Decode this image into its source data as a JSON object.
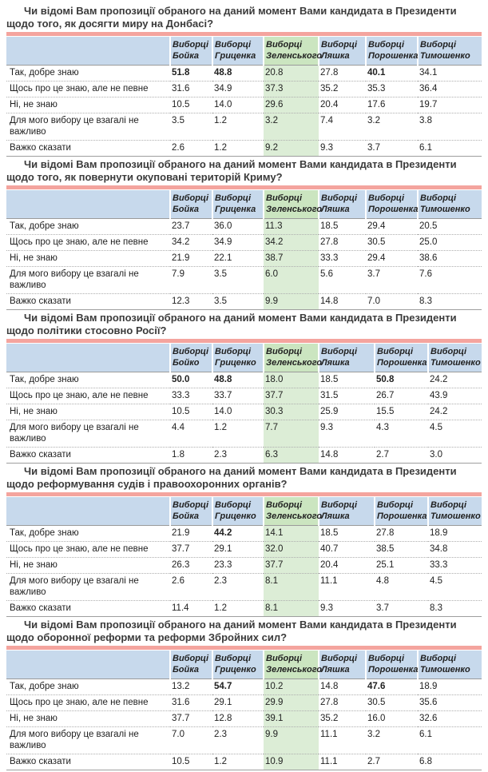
{
  "colors": {
    "title_underline_pink": "#f4a49e",
    "header_blue": "#c7d9ec",
    "highlight_green_header": "#cbe5c0",
    "highlight_green_cell": "#dcedd6"
  },
  "sections": [
    {
      "title": "Чи відомі Вам пропозиції обраного на даний момент Вами кандидата в Президенти щодо того, як досягти миру на Донбасі?",
      "columns": [
        "Виборці Бойка",
        "Виборці Гриценка",
        "Виборці Зеленського",
        "Виборці Ляшка",
        "Виборці Порошенка",
        "Виборці Тимошенко"
      ],
      "highlight_column": "Виборці Зеленського",
      "rows": [
        {
          "label": "Так, добре знаю",
          "values": [
            "51.8",
            "48.8",
            "20.8",
            "27.8",
            "40.1",
            "34.1"
          ],
          "bold": [
            0,
            1,
            4
          ]
        },
        {
          "label": "Щось про це знаю, але не певне",
          "values": [
            "31.6",
            "34.9",
            "37.3",
            "35.2",
            "35.3",
            "36.4"
          ]
        },
        {
          "label": "Ні, не знаю",
          "values": [
            "10.5",
            "14.0",
            "29.6",
            "20.4",
            "17.6",
            "19.7"
          ]
        },
        {
          "label": "Для мого вибору це взагалі не важливо",
          "values": [
            "3.5",
            "1.2",
            "3.2",
            "7.4",
            "3.2",
            "3.8"
          ]
        },
        {
          "label": "Важко сказати",
          "values": [
            "2.6",
            "1.2",
            "9.2",
            "9.3",
            "3.7",
            "6.1"
          ]
        }
      ]
    },
    {
      "title": "Чи відомі Вам пропозиції обраного на даний момент Вами кандидата в Президенти щодо того, як повернути окуповані територій Криму?",
      "columns": [
        "Виборці Бойка",
        "Виборці Гриценка",
        "Виборці Зеленського",
        "Виборці Ляшка",
        "Виборці Порошенка",
        "Виборці Тимошенко"
      ],
      "highlight_column": "Виборці Зеленського",
      "rows": [
        {
          "label": "Так, добре знаю",
          "values": [
            "23.7",
            "36.0",
            "11.3",
            "18.5",
            "29.4",
            "20.5"
          ]
        },
        {
          "label": "Щось про це знаю, але не певне",
          "values": [
            "34.2",
            "34.9",
            "34.2",
            "27.8",
            "30.5",
            "25.0"
          ]
        },
        {
          "label": "Ні, не знаю",
          "values": [
            "21.9",
            "22.1",
            "38.7",
            "33.3",
            "29.4",
            "38.6"
          ]
        },
        {
          "label": "Для мого вибору це взагалі не важливо",
          "values": [
            "7.9",
            "3.5",
            "6.0",
            "5.6",
            "3.7",
            "7.6"
          ]
        },
        {
          "label": "Важко сказати",
          "values": [
            "12.3",
            "3.5",
            "9.9",
            "14.8",
            "7.0",
            "8.3"
          ]
        }
      ]
    },
    {
      "title": "Чи відомі Вам пропозиції обраного на даний момент Вами кандидата в Президенти щодо політики стосовно Росії?",
      "columns": [
        "Виборці Бойко",
        "Виборці Гриценко",
        "Виборці Зеленського",
        "Виборці Ляшка",
        "Виборці Порошенка",
        "Виборці Тимошенко"
      ],
      "highlight_column": "Виборці Зеленського",
      "rows": [
        {
          "label": "Так, добре знаю",
          "values": [
            "50.0",
            "48.8",
            "18.0",
            "18.5",
            "50.8",
            "24.2"
          ],
          "bold": [
            0,
            1,
            4
          ]
        },
        {
          "label": "Щось про це знаю, але не певне",
          "values": [
            "33.3",
            "33.7",
            "37.7",
            "31.5",
            "26.7",
            "43.9"
          ]
        },
        {
          "label": "Ні, не знаю",
          "values": [
            "10.5",
            "14.0",
            "30.3",
            "25.9",
            "15.5",
            "24.2"
          ]
        },
        {
          "label": "Для мого вибору це взагалі не важливо",
          "values": [
            "4.4",
            "1.2",
            "7.7",
            "9.3",
            "4.3",
            "4.5"
          ]
        },
        {
          "label": "Важко сказати",
          "values": [
            "1.8",
            "2.3",
            "6.3",
            "14.8",
            "2.7",
            "3.0"
          ]
        }
      ]
    },
    {
      "title": "Чи відомі Вам пропозиції обраного на даний момент Вами кандидата в Президенти щодо реформування судів і правоохоронних органів?",
      "columns": [
        "Виборці Бойка",
        "Виборці Гриценко",
        "Виборці Зеленського",
        "Виборці Ляшка",
        "Виборці Порошенка",
        "Виборці Тимошенко"
      ],
      "highlight_column": "Виборці Зеленського",
      "rows": [
        {
          "label": "Так, добре знаю",
          "values": [
            "21.9",
            "44.2",
            "14.1",
            "18.5",
            "27.8",
            "18.9"
          ],
          "bold": [
            1
          ]
        },
        {
          "label": "Щось про це знаю, але не певне",
          "values": [
            "37.7",
            "29.1",
            "32.0",
            "40.7",
            "38.5",
            "34.8"
          ]
        },
        {
          "label": "Ні, не знаю",
          "values": [
            "26.3",
            "23.3",
            "37.7",
            "20.4",
            "25.1",
            "33.3"
          ]
        },
        {
          "label": "Для мого вибору це взагалі не важливо",
          "values": [
            "2.6",
            "2.3",
            "8.1",
            "11.1",
            "4.8",
            "4.5"
          ]
        },
        {
          "label": "Важко сказати",
          "values": [
            "11.4",
            "1.2",
            "8.1",
            "9.3",
            "3.7",
            "8.3"
          ]
        }
      ]
    },
    {
      "title": "Чи відомі Вам пропозиції обраного на даний момент Вами кандидата в Президенти щодо оборонної реформи та реформи Збройних сил?",
      "columns": [
        "Виборці Бойка",
        "Виборці Гриценко",
        "Виборці Зеленського",
        "Виборці Ляшка",
        "Виборці Порошенка",
        "Виборці Тимошенко"
      ],
      "highlight_column": "Виборці Зеленського",
      "rows": [
        {
          "label": "Так, добре знаю",
          "values": [
            "13.2",
            "54.7",
            "10.2",
            "14.8",
            "47.6",
            "18.9"
          ],
          "bold": [
            1,
            4
          ]
        },
        {
          "label": "Щось про це знаю, але не певне",
          "values": [
            "31.6",
            "29.1",
            "29.9",
            "27.8",
            "30.5",
            "35.6"
          ]
        },
        {
          "label": "Ні, не знаю",
          "values": [
            "37.7",
            "12.8",
            "39.1",
            "35.2",
            "16.0",
            "32.6"
          ]
        },
        {
          "label": "Для мого вибору це взагалі не важливо",
          "values": [
            "7.0",
            "2.3",
            "9.9",
            "11.1",
            "3.2",
            "6.1"
          ]
        },
        {
          "label": "Важко сказати",
          "values": [
            "10.5",
            "1.2",
            "10.9",
            "11.1",
            "2.7",
            "6.8"
          ]
        }
      ]
    }
  ]
}
